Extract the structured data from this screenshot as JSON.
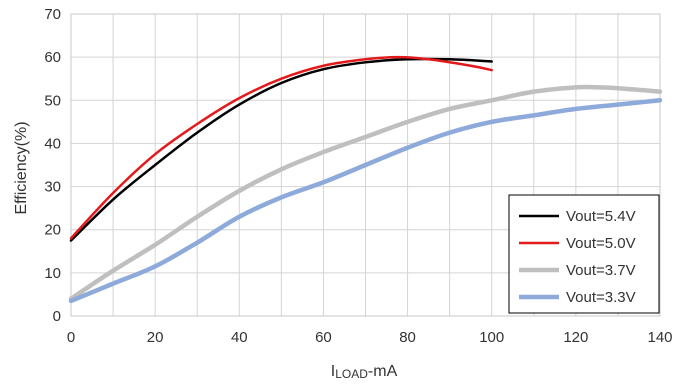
{
  "chart_data": {
    "type": "line",
    "xlabel_main": "I",
    "xlabel_sub": "LOAD",
    "xlabel_suffix": "-mA",
    "ylabel": "Efficiency(%)",
    "xlim": [
      0,
      140
    ],
    "ylim": [
      0,
      70
    ],
    "x_ticks": [
      "0",
      "20",
      "40",
      "60",
      "80",
      "100",
      "120",
      "140"
    ],
    "y_ticks": [
      "0",
      "10",
      "20",
      "30",
      "40",
      "50",
      "60",
      "70"
    ],
    "grid": true,
    "legend_position": "bottom-right",
    "series": [
      {
        "name": "Vout=5.4V",
        "color": "#000000",
        "points": [
          [
            0,
            17.5
          ],
          [
            10,
            27
          ],
          [
            20,
            35
          ],
          [
            30,
            42.5
          ],
          [
            40,
            49
          ],
          [
            50,
            54
          ],
          [
            60,
            57.2
          ],
          [
            70,
            58.8
          ],
          [
            80,
            59.5
          ],
          [
            90,
            59.5
          ],
          [
            100,
            59
          ]
        ]
      },
      {
        "name": "Vout=5.0V",
        "color": "#e31a1c",
        "points": [
          [
            0,
            18
          ],
          [
            10,
            28.5
          ],
          [
            20,
            37.5
          ],
          [
            30,
            44.5
          ],
          [
            40,
            50.5
          ],
          [
            50,
            55
          ],
          [
            60,
            58
          ],
          [
            70,
            59.5
          ],
          [
            78,
            60
          ],
          [
            85,
            59.5
          ],
          [
            95,
            58
          ],
          [
            100,
            57
          ]
        ]
      },
      {
        "name": "Vout=3.7V",
        "color": "#bfbfbf",
        "points": [
          [
            0,
            4
          ],
          [
            10,
            10.5
          ],
          [
            20,
            16.5
          ],
          [
            30,
            23
          ],
          [
            40,
            29
          ],
          [
            50,
            34
          ],
          [
            60,
            38
          ],
          [
            70,
            41.5
          ],
          [
            80,
            45
          ],
          [
            90,
            48
          ],
          [
            100,
            50
          ],
          [
            110,
            52
          ],
          [
            120,
            53
          ],
          [
            125,
            53
          ],
          [
            130,
            52.8
          ],
          [
            140,
            52
          ]
        ]
      },
      {
        "name": "Vout=3.3V",
        "color": "#8eaadb",
        "points": [
          [
            0,
            3.5
          ],
          [
            10,
            7.5
          ],
          [
            20,
            11.5
          ],
          [
            30,
            17
          ],
          [
            40,
            23
          ],
          [
            50,
            27.5
          ],
          [
            60,
            31
          ],
          [
            70,
            35
          ],
          [
            80,
            39
          ],
          [
            90,
            42.5
          ],
          [
            100,
            45
          ],
          [
            110,
            46.5
          ],
          [
            120,
            48
          ],
          [
            130,
            49
          ],
          [
            140,
            50
          ]
        ]
      }
    ]
  }
}
